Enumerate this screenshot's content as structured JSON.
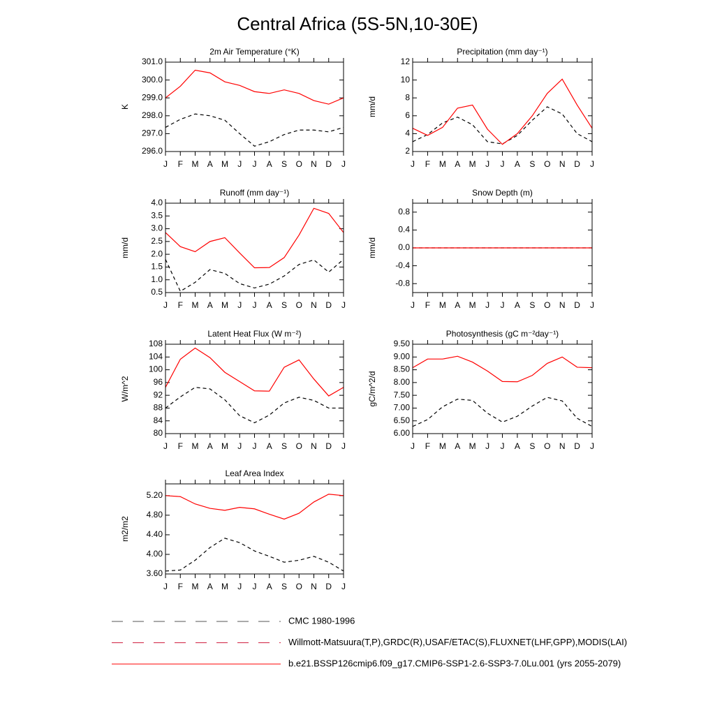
{
  "title": "Central Africa (5S-5N,10-30E)",
  "legend": [
    {
      "label": "CMC 1980-1996",
      "color": "#555555",
      "dash": true
    },
    {
      "label": "Willmott-Matsuura(T,P),GRDC(R),USAF/ETAC(S),FLUXNET(LHF,GPP),MODIS(LAI)",
      "color": "#d02040",
      "dash": true
    },
    {
      "label": "b.e21.BSSP126cmip6.f09_g17.CMIP6-SSP1-2.6-SSP3-7.0Lu.001 (yrs 2055-2079)",
      "color": "#ff0000",
      "dash": false
    }
  ],
  "chart_data": [
    {
      "type": "line",
      "title": "2m Air Temperature (°K)",
      "ylabel": "K",
      "categories": [
        "J",
        "F",
        "M",
        "A",
        "M",
        "J",
        "J",
        "A",
        "S",
        "O",
        "N",
        "D",
        "J"
      ],
      "ylim": [
        296,
        301
      ],
      "yticks": [
        {
          "value": 296,
          "label": "296.0"
        },
        {
          "value": 297,
          "label": "297.0"
        },
        {
          "value": 298,
          "label": "298.0"
        },
        {
          "value": 299,
          "label": "299.0"
        },
        {
          "value": 300,
          "label": "300.0"
        },
        {
          "value": 301,
          "label": "301.0"
        }
      ],
      "series": [
        {
          "color": "#000000",
          "dash": true,
          "values": [
            297.35,
            297.8,
            298.1,
            298.0,
            297.75,
            297.0,
            296.3,
            296.55,
            296.95,
            297.2,
            297.2,
            297.1,
            297.35
          ]
        },
        {
          "color": "#ff0000",
          "dash": false,
          "values": [
            299.0,
            299.65,
            300.55,
            300.4,
            299.9,
            299.7,
            299.35,
            299.25,
            299.45,
            299.25,
            298.85,
            298.65,
            299.0
          ]
        }
      ]
    },
    {
      "type": "line",
      "title": "Precipitation (mm day⁻¹)",
      "ylabel": "mm/d",
      "categories": [
        "J",
        "F",
        "M",
        "A",
        "M",
        "J",
        "J",
        "A",
        "S",
        "O",
        "N",
        "D",
        "J"
      ],
      "ylim": [
        2,
        12
      ],
      "yticks": [
        2,
        4,
        6,
        8,
        10,
        12
      ],
      "series": [
        {
          "color": "#000000",
          "dash": true,
          "values": [
            3.1,
            3.9,
            5.2,
            5.85,
            5.0,
            3.1,
            2.85,
            3.8,
            5.5,
            7.0,
            6.2,
            4.0,
            3.1
          ]
        },
        {
          "color": "#ff0000",
          "dash": false,
          "values": [
            4.6,
            3.8,
            4.7,
            6.85,
            7.2,
            4.5,
            2.8,
            4.0,
            6.0,
            8.5,
            10.1,
            7.2,
            4.6
          ]
        }
      ]
    },
    {
      "type": "line",
      "title": "Runoff (mm day⁻¹)",
      "ylabel": "mm/d",
      "categories": [
        "J",
        "F",
        "M",
        "A",
        "M",
        "J",
        "J",
        "A",
        "S",
        "O",
        "N",
        "D",
        "J"
      ],
      "ylim": [
        0.5,
        4.0
      ],
      "yticks": [
        0.5,
        {
          "value": 1,
          "label": "1.0"
        },
        1.5,
        {
          "value": 2,
          "label": "2.0"
        },
        2.5,
        {
          "value": 3,
          "label": "3.0"
        },
        3.5,
        {
          "value": 4,
          "label": "4.0"
        }
      ],
      "series": [
        {
          "color": "#000000",
          "dash": true,
          "values": [
            1.8,
            0.55,
            0.9,
            1.4,
            1.25,
            0.85,
            0.68,
            0.83,
            1.15,
            1.6,
            1.78,
            1.3,
            1.8
          ]
        },
        {
          "color": "#ff0000",
          "dash": false,
          "values": [
            2.85,
            2.3,
            2.1,
            2.5,
            2.65,
            2.05,
            1.47,
            1.48,
            1.87,
            2.75,
            3.8,
            3.6,
            2.85
          ]
        }
      ]
    },
    {
      "type": "line",
      "title": "Snow Depth (m)",
      "ylabel": "mm/d",
      "categories": [
        "J",
        "F",
        "M",
        "A",
        "M",
        "J",
        "J",
        "A",
        "S",
        "O",
        "N",
        "D",
        "J"
      ],
      "ylim": [
        -1,
        1
      ],
      "yticks": [
        -0.8,
        -0.4,
        {
          "value": 0,
          "label": "0.0"
        },
        0.4,
        0.8
      ],
      "series": [
        {
          "color": "#000000",
          "dash": true,
          "values": [
            0,
            0,
            0,
            0,
            0,
            0,
            0,
            0,
            0,
            0,
            0,
            0,
            0
          ]
        },
        {
          "color": "#ff0000",
          "dash": false,
          "values": [
            0,
            0,
            0,
            0,
            0,
            0,
            0,
            0,
            0,
            0,
            0,
            0,
            0
          ]
        }
      ]
    },
    {
      "type": "line",
      "title": "Latent Heat Flux (W m⁻²)",
      "ylabel": "W/m^2",
      "categories": [
        "J",
        "F",
        "M",
        "A",
        "M",
        "J",
        "J",
        "A",
        "S",
        "O",
        "N",
        "D",
        "J"
      ],
      "ylim": [
        80,
        108
      ],
      "yticks": [
        80,
        84,
        88,
        92,
        96,
        100,
        104,
        108
      ],
      "series": [
        {
          "color": "#000000",
          "dash": true,
          "values": [
            88.0,
            91.5,
            94.5,
            94.0,
            90.6,
            85.6,
            83.4,
            85.8,
            89.6,
            91.4,
            90.4,
            88.0,
            88.0
          ]
        },
        {
          "color": "#ff0000",
          "dash": false,
          "values": [
            94.5,
            103.3,
            106.8,
            103.8,
            99.2,
            96.3,
            93.4,
            93.3,
            100.8,
            103.1,
            97.1,
            91.8,
            94.5
          ]
        }
      ]
    },
    {
      "type": "line",
      "title": "Photosynthesis (gC m⁻²day⁻¹)",
      "ylabel": "gC/m^2/d",
      "categories": [
        "J",
        "F",
        "M",
        "A",
        "M",
        "J",
        "J",
        "A",
        "S",
        "O",
        "N",
        "D",
        "J"
      ],
      "ylim": [
        6,
        9.5
      ],
      "yticks": [
        {
          "value": 6,
          "label": "6.00"
        },
        {
          "value": 6.5,
          "label": "6.50"
        },
        {
          "value": 7,
          "label": "7.00"
        },
        {
          "value": 7.5,
          "label": "7.50"
        },
        {
          "value": 8,
          "label": "8.00"
        },
        {
          "value": 8.5,
          "label": "8.50"
        },
        {
          "value": 9,
          "label": "9.00"
        },
        {
          "value": 9.5,
          "label": "9.50"
        }
      ],
      "series": [
        {
          "color": "#000000",
          "dash": true,
          "values": [
            6.28,
            6.55,
            7.05,
            7.35,
            7.3,
            6.8,
            6.45,
            6.68,
            7.08,
            7.42,
            7.28,
            6.6,
            6.28
          ]
        },
        {
          "color": "#ff0000",
          "dash": false,
          "values": [
            8.58,
            8.92,
            8.92,
            9.03,
            8.8,
            8.45,
            8.04,
            8.03,
            8.28,
            8.75,
            9.0,
            8.6,
            8.58
          ]
        }
      ]
    },
    {
      "type": "line",
      "title": "Leaf Area Index",
      "ylabel": "m2/m2",
      "categories": [
        "J",
        "F",
        "M",
        "A",
        "M",
        "J",
        "J",
        "A",
        "S",
        "O",
        "N",
        "D",
        "J"
      ],
      "ylim": [
        3.6,
        5.44
      ],
      "yticks": [
        {
          "value": 3.6,
          "label": "3.60"
        },
        {
          "value": 4,
          "label": "4.00"
        },
        {
          "value": 4.4,
          "label": "4.40"
        },
        {
          "value": 4.8,
          "label": "4.80"
        },
        {
          "value": 5.2,
          "label": "5.20"
        }
      ],
      "series": [
        {
          "color": "#000000",
          "dash": true,
          "values": [
            3.66,
            3.68,
            3.88,
            4.14,
            4.33,
            4.24,
            4.07,
            3.96,
            3.84,
            3.88,
            3.96,
            3.84,
            3.66
          ]
        },
        {
          "color": "#ff0000",
          "dash": false,
          "values": [
            5.2,
            5.18,
            5.03,
            4.94,
            4.9,
            4.96,
            4.93,
            4.82,
            4.72,
            4.84,
            5.07,
            5.23,
            5.2
          ]
        }
      ]
    }
  ]
}
